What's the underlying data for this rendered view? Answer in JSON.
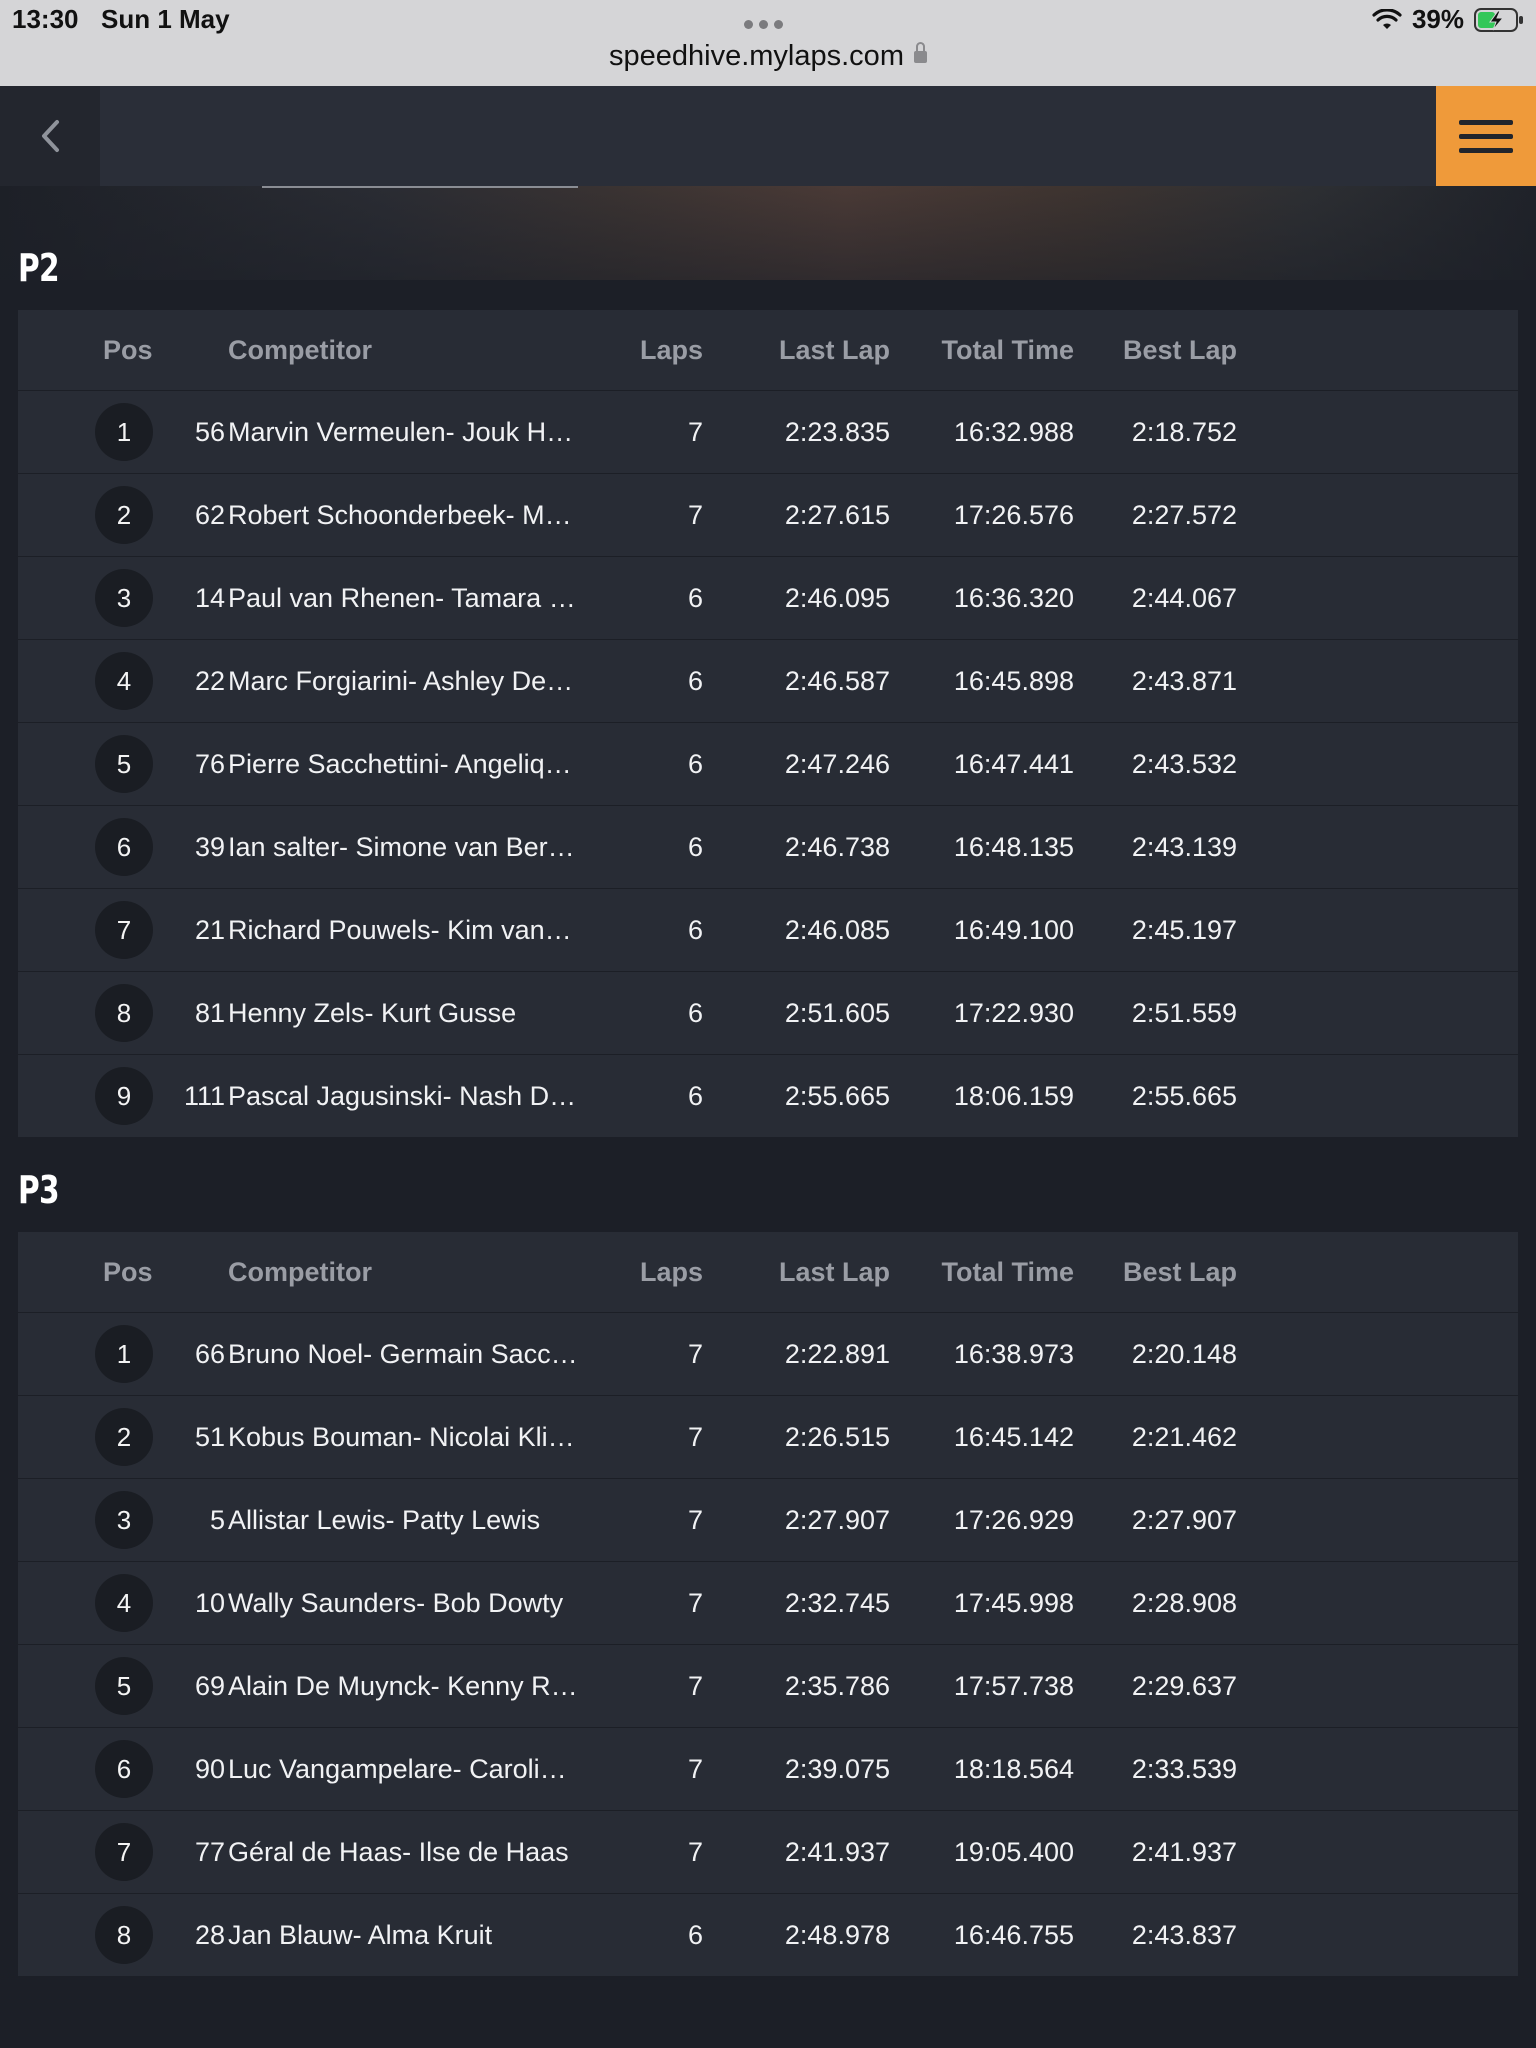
{
  "status_bar": {
    "time": "13:30",
    "date": "Sun 1 May",
    "url": "speedhive.mylaps.com",
    "battery": "39%"
  },
  "header": {
    "back_icon": "chevron-left-icon",
    "menu_icon": "hamburger-menu-icon",
    "accent_color": "#ef9a3a"
  },
  "columns": {
    "pos": "Pos",
    "competitor": "Competitor",
    "laps": "Laps",
    "last_lap": "Last Lap",
    "total_time": "Total Time",
    "best_lap": "Best Lap"
  },
  "sections": [
    {
      "title": "P2",
      "rows": [
        {
          "pos": "1",
          "num": "56",
          "competitor": "Marvin Vermeulen- Jouk H…",
          "laps": "7",
          "last_lap": "2:23.835",
          "total_time": "16:32.988",
          "best_lap": "2:18.752"
        },
        {
          "pos": "2",
          "num": "62",
          "competitor": "Robert Schoonderbeek- M…",
          "laps": "7",
          "last_lap": "2:27.615",
          "total_time": "17:26.576",
          "best_lap": "2:27.572"
        },
        {
          "pos": "3",
          "num": "14",
          "competitor": "Paul van Rhenen- Tamara …",
          "laps": "6",
          "last_lap": "2:46.095",
          "total_time": "16:36.320",
          "best_lap": "2:44.067"
        },
        {
          "pos": "4",
          "num": "22",
          "competitor": "Marc Forgiarini- Ashley De…",
          "laps": "6",
          "last_lap": "2:46.587",
          "total_time": "16:45.898",
          "best_lap": "2:43.871"
        },
        {
          "pos": "5",
          "num": "76",
          "competitor": "Pierre Sacchettini- Angeliq…",
          "laps": "6",
          "last_lap": "2:47.246",
          "total_time": "16:47.441",
          "best_lap": "2:43.532"
        },
        {
          "pos": "6",
          "num": "39",
          "competitor": "Ian salter- Simone van Ber…",
          "laps": "6",
          "last_lap": "2:46.738",
          "total_time": "16:48.135",
          "best_lap": "2:43.139"
        },
        {
          "pos": "7",
          "num": "21",
          "competitor": "Richard Pouwels- Kim van…",
          "laps": "6",
          "last_lap": "2:46.085",
          "total_time": "16:49.100",
          "best_lap": "2:45.197"
        },
        {
          "pos": "8",
          "num": "81",
          "competitor": "Henny Zels- Kurt Gusse",
          "laps": "6",
          "last_lap": "2:51.605",
          "total_time": "17:22.930",
          "best_lap": "2:51.559"
        },
        {
          "pos": "9",
          "num": "111",
          "competitor": "Pascal Jagusinski- Nash D…",
          "laps": "6",
          "last_lap": "2:55.665",
          "total_time": "18:06.159",
          "best_lap": "2:55.665"
        }
      ]
    },
    {
      "title": "P3",
      "rows": [
        {
          "pos": "1",
          "num": "66",
          "competitor": "Bruno Noel- Germain Sacc…",
          "laps": "7",
          "last_lap": "2:22.891",
          "total_time": "16:38.973",
          "best_lap": "2:20.148"
        },
        {
          "pos": "2",
          "num": "51",
          "competitor": "Kobus Bouman- Nicolai Kli…",
          "laps": "7",
          "last_lap": "2:26.515",
          "total_time": "16:45.142",
          "best_lap": "2:21.462"
        },
        {
          "pos": "3",
          "num": "5",
          "competitor": "Allistar Lewis- Patty Lewis",
          "laps": "7",
          "last_lap": "2:27.907",
          "total_time": "17:26.929",
          "best_lap": "2:27.907"
        },
        {
          "pos": "4",
          "num": "10",
          "competitor": "Wally Saunders- Bob Dowty",
          "laps": "7",
          "last_lap": "2:32.745",
          "total_time": "17:45.998",
          "best_lap": "2:28.908"
        },
        {
          "pos": "5",
          "num": "69",
          "competitor": "Alain De Muynck- Kenny R…",
          "laps": "7",
          "last_lap": "2:35.786",
          "total_time": "17:57.738",
          "best_lap": "2:29.637"
        },
        {
          "pos": "6",
          "num": "90",
          "competitor": "Luc Vangampelare- Caroli…",
          "laps": "7",
          "last_lap": "2:39.075",
          "total_time": "18:18.564",
          "best_lap": "2:33.539"
        },
        {
          "pos": "7",
          "num": "77",
          "competitor": "Géral de Haas- Ilse de Haas",
          "laps": "7",
          "last_lap": "2:41.937",
          "total_time": "19:05.400",
          "best_lap": "2:41.937"
        },
        {
          "pos": "8",
          "num": "28",
          "competitor": "Jan Blauw- Alma Kruit",
          "laps": "6",
          "last_lap": "2:48.978",
          "total_time": "16:46.755",
          "best_lap": "2:43.837"
        }
      ]
    }
  ]
}
